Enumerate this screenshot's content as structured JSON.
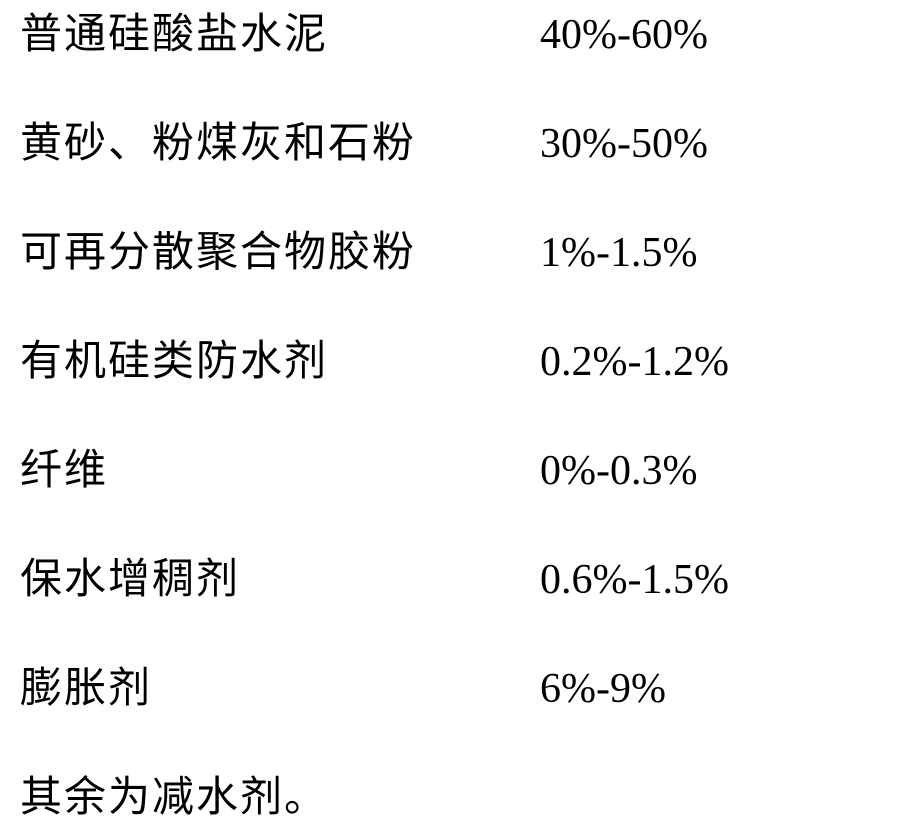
{
  "composition": {
    "rows": [
      {
        "label": "普通硅酸盐水泥",
        "value": "40%-60%"
      },
      {
        "label": "黄砂、粉煤灰和石粉",
        "value": "30%-50%"
      },
      {
        "label": "可再分散聚合物胶粉",
        "value": "1%-1.5%"
      },
      {
        "label": "有机硅类防水剂",
        "value": "0.2%-1.2%"
      },
      {
        "label": "纤维",
        "value": "0%-0.3%"
      },
      {
        "label": "保水增稠剂",
        "value": "0.6%-1.5%"
      },
      {
        "label": "膨胀剂",
        "value": "6%-9%"
      }
    ],
    "footer": "其余为减水剂。"
  },
  "style": {
    "fontsize_pt": 42,
    "text_color": "#000000",
    "background_color": "#ffffff",
    "label_col_width": 520,
    "row_gap": 48,
    "label_font": "KaiTi",
    "value_font": "Times New Roman"
  }
}
